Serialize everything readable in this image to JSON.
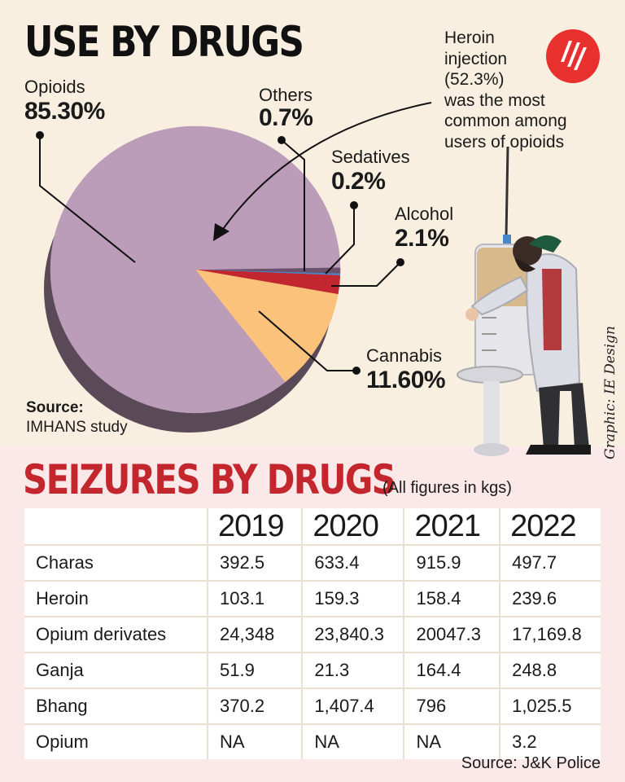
{
  "title": "USE BY DRUGS",
  "callout": [
    "Heroin",
    "injection",
    "(52.3%)",
    "was the most",
    "common among",
    "users of opioids"
  ],
  "colors": {
    "opioids": "#bb9cb9",
    "opioids_side": "#5a4956",
    "cannabis": "#fbc27c",
    "alcohol": "#c2262e",
    "sedatives": "#4a87c8",
    "others": "#6c506c",
    "accent": "#c4262e"
  },
  "chart_data": [
    {
      "type": "pie",
      "title": "USE BY DRUGS",
      "slices": [
        {
          "label": "Opioids",
          "value": 85.3,
          "display": "85.30%"
        },
        {
          "label": "Cannabis",
          "value": 11.6,
          "display": "11.60%"
        },
        {
          "label": "Alcohol",
          "value": 2.1,
          "display": "2.1%"
        },
        {
          "label": "Sedatives",
          "value": 0.2,
          "display": "0.2%"
        },
        {
          "label": "Others",
          "value": 0.7,
          "display": "0.7%"
        }
      ]
    },
    {
      "type": "table",
      "title": "SEIZURES BY DRUGS",
      "unit_note": "(All figures in kgs)",
      "columns": [
        "2019",
        "2020",
        "2021",
        "2022"
      ],
      "rows": [
        {
          "drug": "Charas",
          "values": [
            "392.5",
            "633.4",
            "915.9",
            "497.7"
          ]
        },
        {
          "drug": "Heroin",
          "values": [
            "103.1",
            "159.3",
            "158.4",
            "239.6"
          ]
        },
        {
          "drug": "Opium derivates",
          "values": [
            "24,348",
            "23,840.3",
            "20047.3",
            "17,169.8"
          ]
        },
        {
          "drug": "Ganja",
          "values": [
            "51.9",
            "21.3",
            "164.4",
            "248.8"
          ]
        },
        {
          "drug": "Bhang",
          "values": [
            "370.2",
            "1,407.4",
            "796",
            "1,025.5"
          ]
        },
        {
          "drug": "Opium",
          "values": [
            "NA",
            "NA",
            "NA",
            "3.2"
          ]
        }
      ]
    }
  ],
  "source_top": {
    "label": "Source:",
    "value": "IMHANS study"
  },
  "source_bottom": "Source: J&K Police",
  "credit": "Graphic: IE Design"
}
